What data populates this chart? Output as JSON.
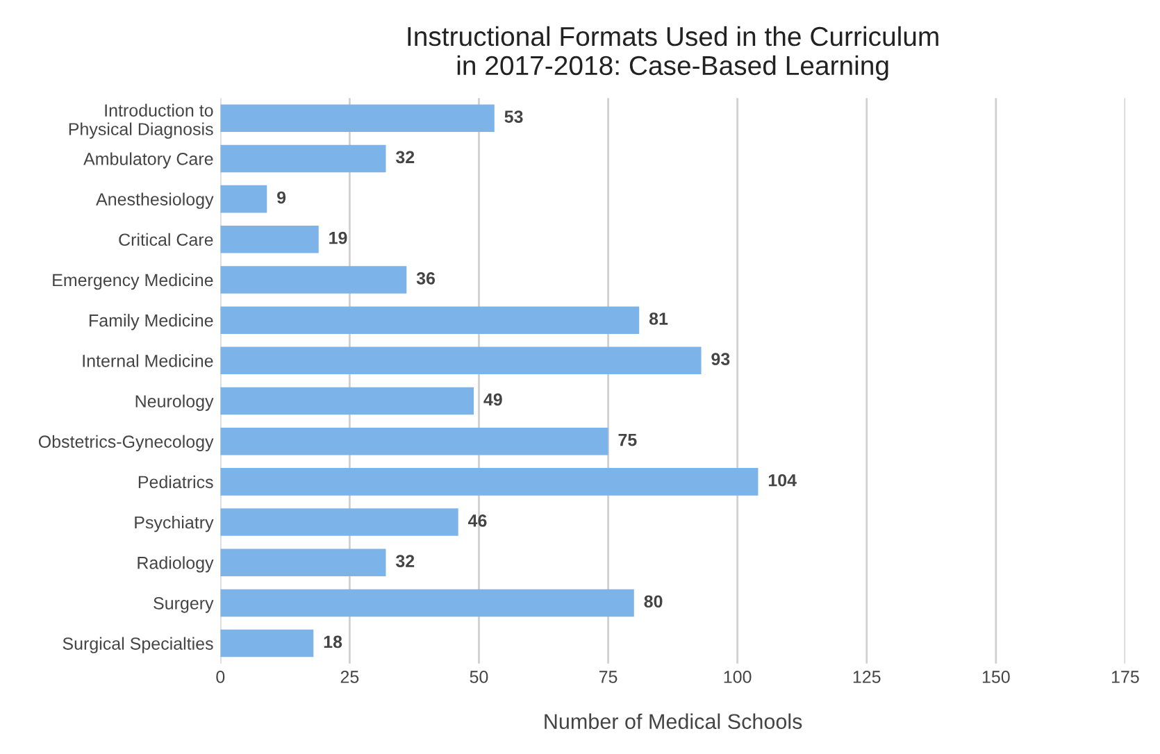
{
  "chart_data": {
    "type": "bar",
    "orientation": "horizontal",
    "title": "Instructional Formats Used in the Curriculum\nin 2017-2018: Case-Based Learning",
    "xlabel": "Number of Medical Schools",
    "categories": [
      "Introduction to\nPhysical Diagnosis",
      "Ambulatory Care",
      "Anesthesiology",
      "Critical Care",
      "Emergency Medicine",
      "Family Medicine",
      "Internal Medicine",
      "Neurology",
      "Obstetrics-Gynecology",
      "Pediatrics",
      "Psychiatry",
      "Radiology",
      "Surgery",
      "Surgical Specialties"
    ],
    "values": [
      53,
      32,
      9,
      19,
      36,
      81,
      93,
      49,
      75,
      104,
      46,
      32,
      80,
      18
    ],
    "color": "#7cb4ea",
    "xlim": [
      0,
      175
    ],
    "xticks": [
      0,
      25,
      50,
      75,
      100,
      125,
      150,
      175
    ],
    "grid": "x",
    "data_labels": true
  }
}
